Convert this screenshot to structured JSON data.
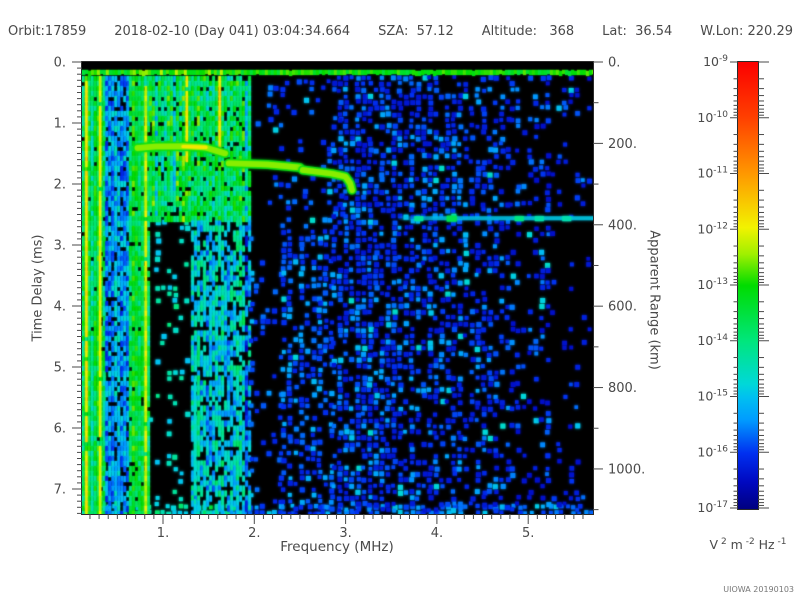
{
  "header": {
    "orbit": "Orbit:17859",
    "datetime": "2018-02-10 (Day 041) 03:04:34.664",
    "sza": "SZA:  57.12",
    "altitude": "Altitude:   368",
    "lat": "Lat:  36.54",
    "wlon": "W.Lon: 220.29"
  },
  "credit": "UIOWA 20190103",
  "chart_data": {
    "type": "heatmap",
    "description": "Radar sounder ionogram: received spectral density vs sounding frequency and echo time delay",
    "xlabel": "Frequency (MHz)",
    "ylabel_left": "Time Delay (ms)",
    "ylabel_right": "Apparent Range (km)",
    "x_range_mhz": [
      0.11,
      5.73
    ],
    "x_major_ticks": {
      "values": [
        1,
        2,
        3,
        4,
        5
      ],
      "labels": [
        "1.",
        "2.",
        "3.",
        "4.",
        "5."
      ]
    },
    "x_minor_step": 0.1,
    "y_range_ms": [
      0,
      7.41
    ],
    "y_major_ticks": {
      "values": [
        0,
        1,
        2,
        3,
        4,
        5,
        6,
        7
      ],
      "labels": [
        "0.",
        "1.",
        "2.",
        "3.",
        "4.",
        "5.",
        "6.",
        "7."
      ]
    },
    "y_minor_step": 0.1,
    "range_axis_km": {
      "range": [
        0,
        1111
      ],
      "major_ticks": {
        "values": [
          0,
          200,
          400,
          600,
          800,
          1000
        ],
        "labels": [
          "0.",
          "200.",
          "400.",
          "600.",
          "800.",
          "1000."
        ]
      },
      "minor_step": 100
    },
    "colorbar": {
      "scale": "log",
      "tick_exponents": [
        -9,
        -10,
        -11,
        -12,
        -13,
        -14,
        -15,
        -16,
        -17
      ],
      "unit_parts": [
        [
          "V",
          "2"
        ],
        [
          "m",
          "-2"
        ],
        [
          "Hz",
          "-1"
        ]
      ],
      "gradient": [
        {
          "pos": 0.0,
          "color": "#fb0000"
        },
        {
          "pos": 0.125,
          "color": "#ff4000"
        },
        {
          "pos": 0.25,
          "color": "#ff9800"
        },
        {
          "pos": 0.37,
          "color": "#f2f200"
        },
        {
          "pos": 0.43,
          "color": "#a0f000"
        },
        {
          "pos": 0.5,
          "color": "#00dc00"
        },
        {
          "pos": 0.625,
          "color": "#00e67d"
        },
        {
          "pos": 0.72,
          "color": "#00d8d8"
        },
        {
          "pos": 0.75,
          "color": "#00c0f0"
        },
        {
          "pos": 0.8,
          "color": "#009cff"
        },
        {
          "pos": 0.875,
          "color": "#0030f0"
        },
        {
          "pos": 0.94,
          "color": "#0008c0"
        },
        {
          "pos": 1.0,
          "color": "#000080"
        }
      ]
    },
    "features": {
      "surface_noise_band": {
        "f_mhz": [
          0.11,
          5.73
        ],
        "t_ms": [
          0.13,
          0.22
        ],
        "color": "green"
      },
      "ionospheric_echo_trace": {
        "segments": [
          {
            "points": [
              [
                0.72,
                1.41
              ],
              [
                0.92,
                1.385
              ],
              [
                1.24,
                1.38
              ],
              [
                1.46,
                1.4
              ],
              [
                1.68,
                1.5
              ]
            ],
            "color": "yellow-green"
          },
          {
            "points": [
              [
                1.72,
                1.66
              ],
              [
                2.15,
                1.68
              ],
              [
                2.5,
                1.73
              ]
            ],
            "color": "green"
          },
          {
            "points": [
              [
                2.53,
                1.77
              ],
              [
                2.85,
                1.83
              ],
              [
                3.0,
                1.88
              ],
              [
                3.05,
                1.99
              ],
              [
                3.07,
                2.1
              ]
            ],
            "color": "green"
          }
        ],
        "bright_core_points": [
          [
            1.22,
            1.385
          ],
          [
            1.47,
            1.4
          ]
        ]
      },
      "ground_echo_line": {
        "f_mhz": [
          3.6,
          5.72
        ],
        "t_ms": 2.56,
        "apparent_range_km": 384,
        "color": "cyan",
        "bright_spots_f_mhz": [
          3.78,
          4.14,
          4.88,
          5.1,
          5.4
        ]
      },
      "plasma_harmonic_lines": [
        {
          "f_mhz": 0.16,
          "t_ms": [
            0.23,
            7.41
          ],
          "pos": 0.36
        },
        {
          "f_mhz": 0.31,
          "t_ms": [
            0.23,
            7.41
          ],
          "pos": 0.38
        },
        {
          "f_mhz": 0.81,
          "t_ms": [
            0.23,
            7.41
          ],
          "pos": 0.4
        },
        {
          "f_mhz": 1.26,
          "t_ms": [
            0.23,
            1.6
          ],
          "pos": 0.36
        },
        {
          "f_mhz": 1.62,
          "t_ms": [
            0.23,
            1.45
          ],
          "pos": 0.34
        },
        {
          "f_mhz": 1.35,
          "t_ms": [
            5.2,
            7.41
          ],
          "pos": 0.7
        }
      ]
    },
    "noise_regions": [
      {
        "name": "bottom-edge-left",
        "f": [
          0.11,
          1.8
        ],
        "t": [
          7.26,
          7.41
        ],
        "style": "blobs",
        "density": 0.9,
        "pos": [
          0.55,
          0.75
        ]
      },
      {
        "name": "bottom-edge-right",
        "f": [
          1.8,
          5.73
        ],
        "t": [
          7.26,
          7.41
        ],
        "style": "blobs",
        "density": 0.7,
        "pos": [
          0.72,
          0.88
        ]
      },
      {
        "name": "left-solid-green",
        "f": [
          0.11,
          0.37
        ],
        "t": [
          0.23,
          7.41
        ],
        "style": "stripes",
        "density": 0.95,
        "pos": [
          0.5,
          0.68
        ]
      },
      {
        "name": "left-blue-mottle",
        "f": [
          0.37,
          0.63
        ],
        "t": [
          0.23,
          7.41
        ],
        "style": "stripes",
        "density": 0.8,
        "pos": [
          0.68,
          0.86
        ]
      },
      {
        "name": "left-green-stripe",
        "f": [
          0.63,
          0.85
        ],
        "t": [
          0.23,
          7.41
        ],
        "style": "stripes",
        "density": 0.92,
        "pos": [
          0.48,
          0.64
        ]
      },
      {
        "name": "dark-column",
        "f": [
          0.85,
          1.31
        ],
        "t": [
          2.6,
          7.3
        ],
        "style": "blobs",
        "density": 0.13,
        "pos": [
          0.62,
          0.75
        ]
      },
      {
        "name": "upper-left-mottle",
        "f": [
          0.85,
          1.95
        ],
        "t": [
          0.23,
          2.6
        ],
        "style": "stripes",
        "density": 0.88,
        "pos": [
          0.46,
          0.7
        ]
      },
      {
        "name": "left-lower-mottle",
        "f": [
          1.31,
          1.95
        ],
        "t": [
          2.6,
          7.41
        ],
        "style": "stripes",
        "density": 0.7,
        "pos": [
          0.6,
          0.82
        ]
      },
      {
        "name": "mid-upper-dark",
        "f": [
          1.95,
          3.0
        ],
        "t": [
          0.3,
          2.75
        ],
        "style": "blobs",
        "density": 0.17,
        "pos": [
          0.8,
          0.9
        ]
      },
      {
        "name": "mid-dark-band",
        "f": [
          2.0,
          2.3
        ],
        "t": [
          2.75,
          7.41
        ],
        "style": "blobs",
        "density": 0.15,
        "pos": [
          0.8,
          0.9
        ]
      },
      {
        "name": "mid-lower-a",
        "f": [
          1.95,
          2.0
        ],
        "t": [
          2.75,
          7.41
        ],
        "style": "blobs",
        "density": 0.5,
        "pos": [
          0.74,
          0.88
        ]
      },
      {
        "name": "mid-lower-b",
        "f": [
          2.3,
          2.85
        ],
        "t": [
          2.75,
          7.41
        ],
        "style": "blobs",
        "density": 0.52,
        "pos": [
          0.76,
          0.9
        ]
      },
      {
        "name": "right-1",
        "f": [
          2.85,
          3.9
        ],
        "t": [
          0.23,
          7.41
        ],
        "style": "blobs",
        "density": 0.55,
        "pos": [
          0.78,
          0.92
        ]
      },
      {
        "name": "right-2",
        "f": [
          3.9,
          4.8
        ],
        "t": [
          0.23,
          7.41
        ],
        "style": "blobs",
        "density": 0.48,
        "pos": [
          0.78,
          0.92
        ]
      },
      {
        "name": "right-3",
        "f": [
          4.8,
          5.25
        ],
        "t": [
          0.23,
          7.41
        ],
        "style": "blobs",
        "density": 0.3,
        "pos": [
          0.8,
          0.93
        ]
      },
      {
        "name": "right-4",
        "f": [
          5.25,
          5.73
        ],
        "t": [
          0.23,
          7.41
        ],
        "style": "blobs",
        "density": 0.16,
        "pos": [
          0.8,
          0.93
        ]
      }
    ]
  }
}
